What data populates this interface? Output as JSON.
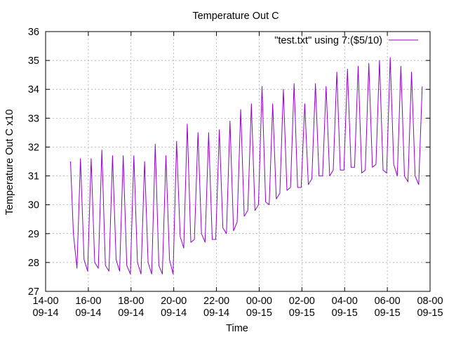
{
  "chart_data": {
    "type": "line",
    "title": "Temperature Out C",
    "xlabel": "Time",
    "ylabel": "Temperature Out C x10",
    "ylim": [
      27,
      36
    ],
    "y_ticks": [
      "27",
      "28",
      "29",
      "30",
      "31",
      "32",
      "33",
      "34",
      "35",
      "36"
    ],
    "x_ticks": [
      {
        "time": "14-00",
        "date": "09-14"
      },
      {
        "time": "16-00",
        "date": "09-14"
      },
      {
        "time": "18-00",
        "date": "09-14"
      },
      {
        "time": "20-00",
        "date": "09-14"
      },
      {
        "time": "22-00",
        "date": "09-14"
      },
      {
        "time": "00-00",
        "date": "09-15"
      },
      {
        "time": "02-00",
        "date": "09-15"
      },
      {
        "time": "04-00",
        "date": "09-15"
      },
      {
        "time": "06-00",
        "date": "09-15"
      },
      {
        "time": "08-00",
        "date": "09-15"
      }
    ],
    "xlim": [
      "09-14 14:00",
      "09-15 08:00"
    ],
    "grid": true,
    "legend_position": "top-right",
    "series": [
      {
        "name": "\"test.txt\" using 7:($5/10)",
        "color": "#9400d3",
        "x": [
          "09-14 15:10",
          "09-14 15:18",
          "09-14 15:28",
          "09-14 15:38",
          "09-14 15:48",
          "09-14 15:58",
          "09-14 16:08",
          "09-14 16:18",
          "09-14 16:28",
          "09-14 16:38",
          "09-14 16:48",
          "09-14 16:58",
          "09-14 17:08",
          "09-14 17:18",
          "09-14 17:28",
          "09-14 17:38",
          "09-14 17:48",
          "09-14 17:58",
          "09-14 18:08",
          "09-14 18:18",
          "09-14 18:28",
          "09-14 18:38",
          "09-14 18:48",
          "09-14 18:58",
          "09-14 19:08",
          "09-14 19:18",
          "09-14 19:28",
          "09-14 19:38",
          "09-14 19:48",
          "09-14 19:58",
          "09-14 20:08",
          "09-14 20:18",
          "09-14 20:28",
          "09-14 20:38",
          "09-14 20:48",
          "09-14 20:58",
          "09-14 21:08",
          "09-14 21:18",
          "09-14 21:28",
          "09-14 21:38",
          "09-14 21:48",
          "09-14 21:58",
          "09-14 22:08",
          "09-14 22:18",
          "09-14 22:28",
          "09-14 22:38",
          "09-14 22:48",
          "09-14 22:58",
          "09-14 23:08",
          "09-14 23:18",
          "09-14 23:28",
          "09-14 23:38",
          "09-14 23:48",
          "09-14 23:58",
          "09-15 00:08",
          "09-15 00:18",
          "09-15 00:28",
          "09-15 00:38",
          "09-15 00:48",
          "09-15 00:58",
          "09-15 01:08",
          "09-15 01:18",
          "09-15 01:28",
          "09-15 01:38",
          "09-15 01:48",
          "09-15 01:58",
          "09-15 02:08",
          "09-15 02:18",
          "09-15 02:28",
          "09-15 02:38",
          "09-15 02:48",
          "09-15 02:58",
          "09-15 03:08",
          "09-15 03:18",
          "09-15 03:28",
          "09-15 03:38",
          "09-15 03:48",
          "09-15 03:58",
          "09-15 04:08",
          "09-15 04:18",
          "09-15 04:28",
          "09-15 04:38",
          "09-15 04:48",
          "09-15 04:58",
          "09-15 05:08",
          "09-15 05:18",
          "09-15 05:28",
          "09-15 05:38",
          "09-15 05:48",
          "09-15 05:58",
          "09-15 06:08",
          "09-15 06:18",
          "09-15 06:28",
          "09-15 06:38",
          "09-15 06:48",
          "09-15 06:58",
          "09-15 07:08",
          "09-15 07:18",
          "09-15 07:28",
          "09-15 07:38"
        ],
        "values": [
          31.5,
          29.0,
          27.8,
          31.6,
          28.1,
          27.7,
          31.6,
          28.0,
          27.8,
          31.9,
          27.9,
          27.7,
          31.7,
          28.1,
          27.7,
          31.7,
          27.9,
          27.6,
          31.7,
          28.0,
          27.6,
          31.5,
          28.0,
          27.6,
          32.1,
          27.9,
          27.6,
          31.7,
          28.1,
          27.6,
          32.2,
          28.9,
          28.5,
          32.8,
          28.7,
          28.8,
          32.5,
          29.0,
          28.7,
          32.5,
          28.8,
          28.8,
          32.6,
          29.2,
          29.0,
          32.9,
          29.1,
          29.4,
          33.3,
          29.6,
          29.8,
          33.5,
          29.8,
          30.0,
          34.1,
          30.1,
          30.0,
          33.5,
          30.2,
          30.4,
          34.0,
          30.5,
          30.6,
          34.2,
          30.6,
          30.6,
          33.5,
          30.7,
          30.9,
          34.2,
          31.0,
          31.0,
          34.1,
          31.0,
          31.2,
          34.6,
          31.2,
          31.2,
          34.7,
          31.3,
          31.3,
          34.8,
          31.1,
          31.2,
          34.9,
          31.3,
          31.4,
          35.0,
          31.2,
          31.1,
          35.1,
          31.4,
          31.0,
          34.8,
          31.0,
          30.8,
          34.6,
          31.0,
          30.7,
          34.1
        ]
      }
    ]
  }
}
